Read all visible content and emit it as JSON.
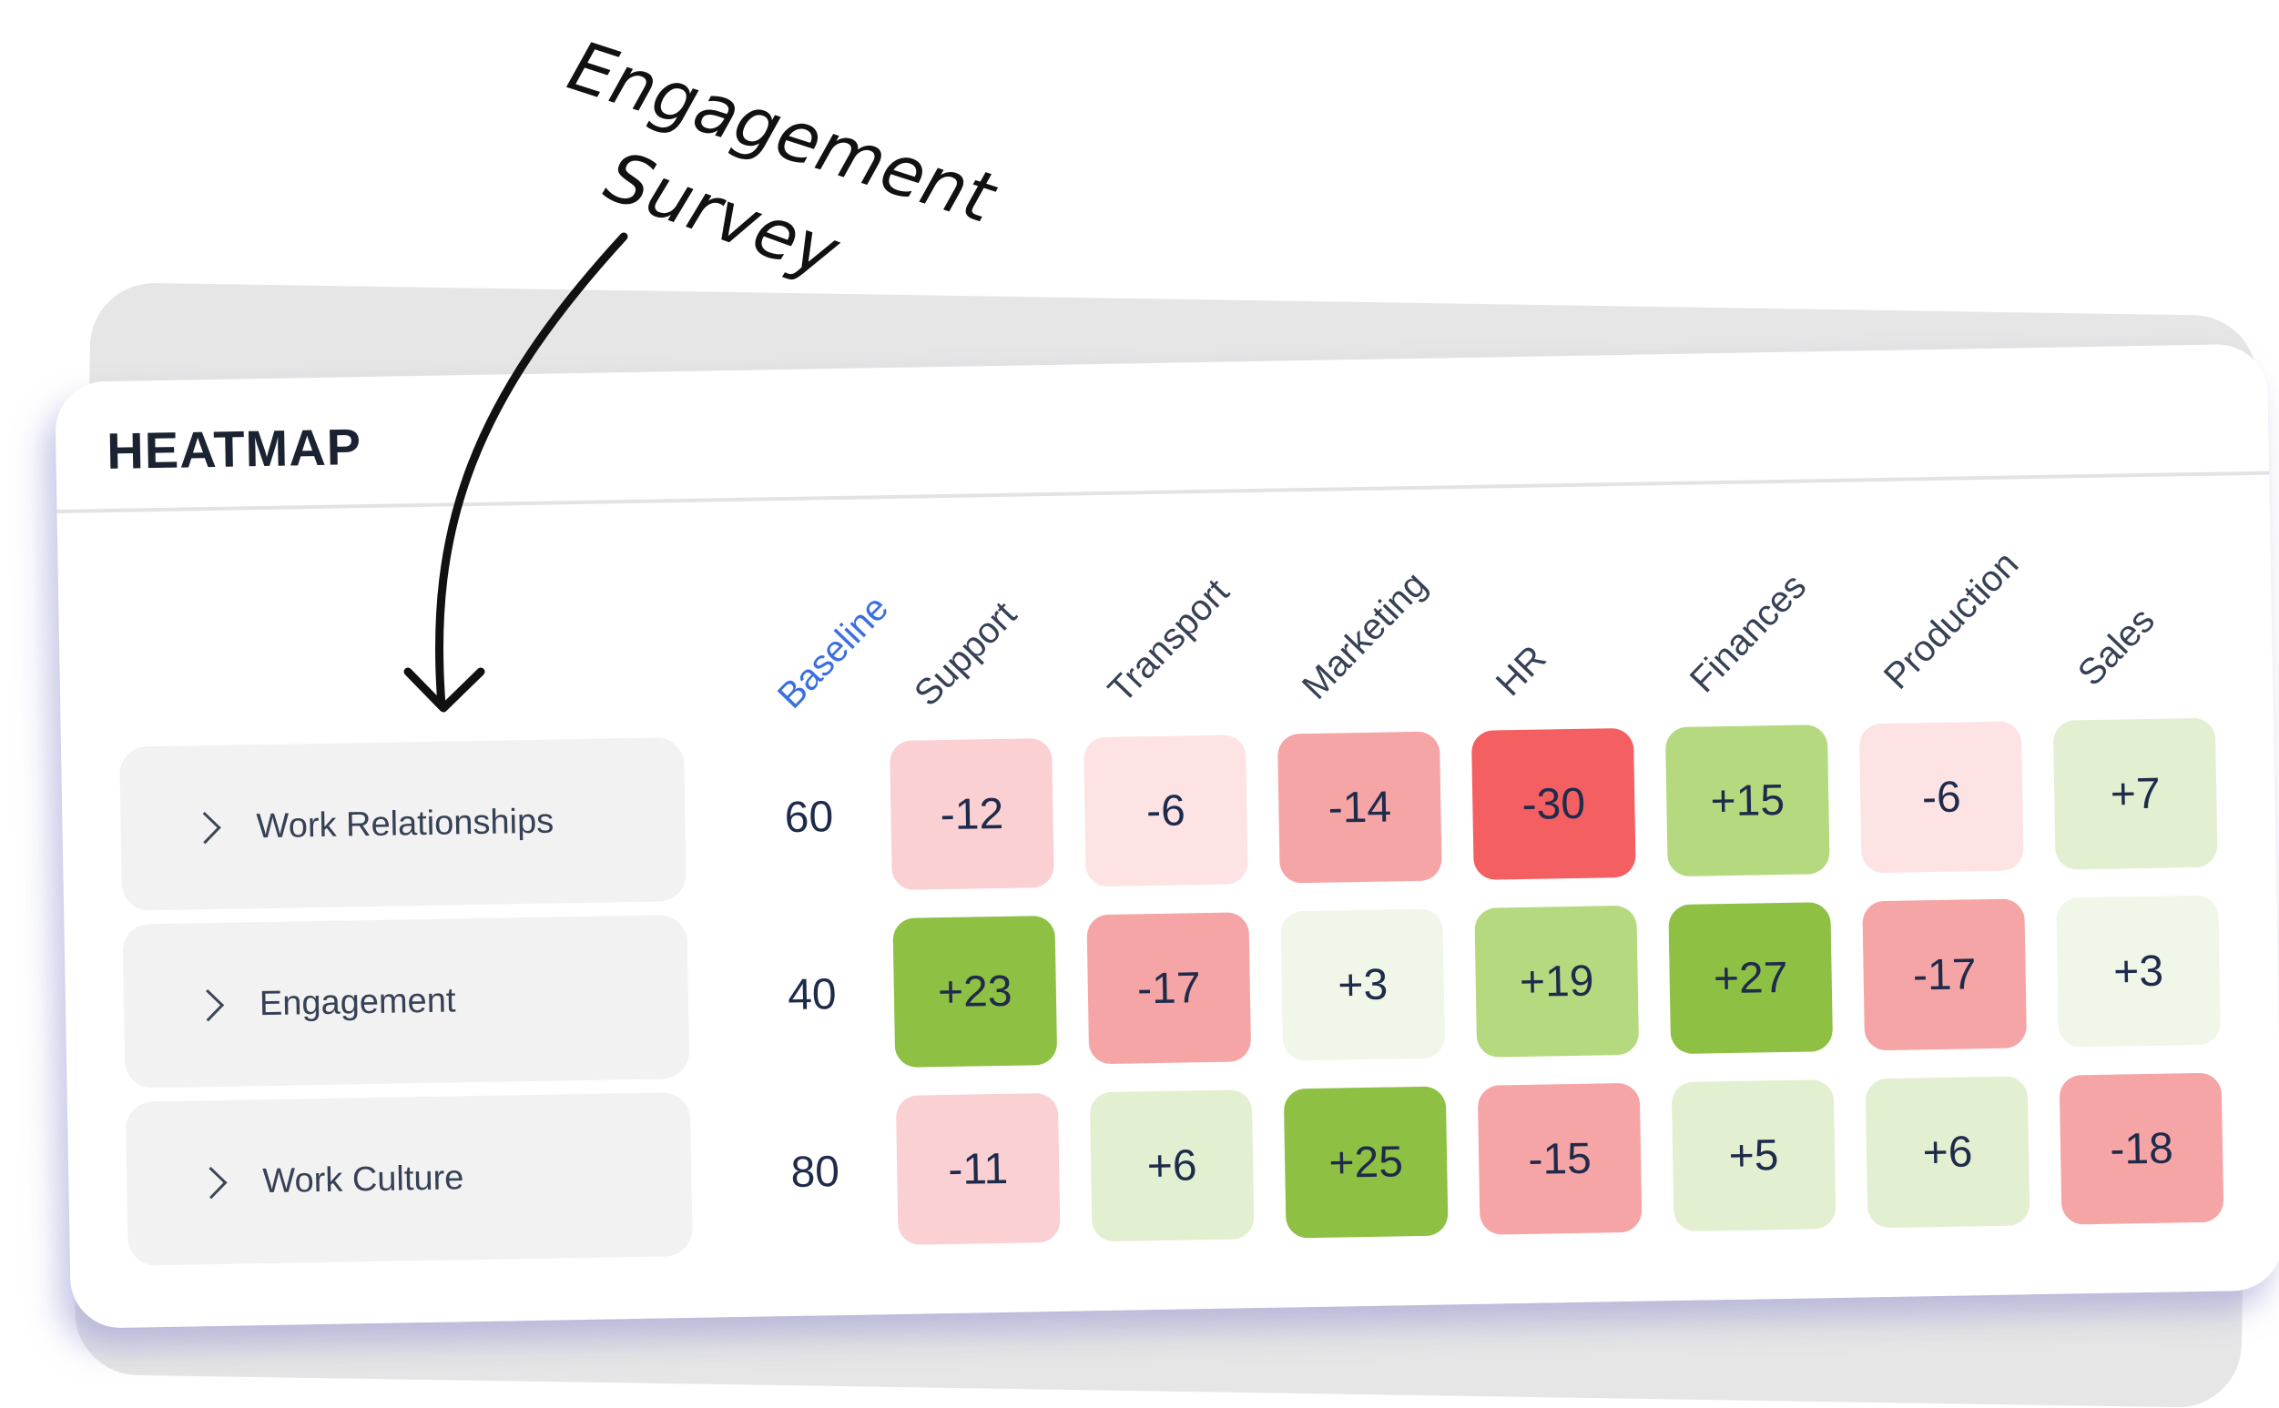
{
  "annotation": {
    "line1": "Engagement",
    "line2": "Survey"
  },
  "panel": {
    "title": "HEATMAP"
  },
  "chart_data": {
    "type": "heatmap",
    "columns": [
      "Baseline",
      "Support",
      "Transport",
      "Marketing",
      "HR",
      "Finances",
      "Production",
      "Sales"
    ],
    "rows": [
      {
        "label": "Work Relationships",
        "baseline": 60,
        "values": [
          "-12",
          "-6",
          "-14",
          "-30",
          "+15",
          "-6",
          "+7"
        ]
      },
      {
        "label": "Engagement",
        "baseline": 40,
        "values": [
          "+23",
          "-17",
          "+3",
          "+19",
          "+27",
          "-17",
          "+3"
        ]
      },
      {
        "label": "Work Culture",
        "baseline": 80,
        "values": [
          "-11",
          "+6",
          "+25",
          "-15",
          "+5",
          "+6",
          "-18"
        ]
      }
    ],
    "colors": {
      "strong_negative": "#f45f62",
      "negative": "#f6a5a6",
      "mild_negative": "#fad0d2",
      "slight_negative": "#fde3e4",
      "strong_positive": "#8dc043",
      "positive": "#b5d97f",
      "mild_positive": "#e2efd1",
      "slight_positive": "#f0f6e8"
    }
  }
}
